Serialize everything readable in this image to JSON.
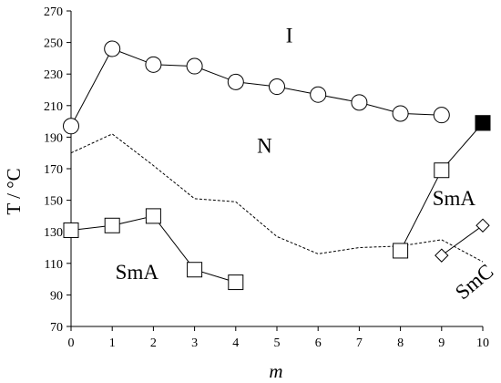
{
  "chart_data": {
    "type": "scatter",
    "xlabel": "m",
    "ylabel": "T / °C",
    "xlim": [
      0,
      10
    ],
    "ylim": [
      70,
      270
    ],
    "x_ticks": [
      0,
      1,
      2,
      3,
      4,
      5,
      6,
      7,
      8,
      9,
      10
    ],
    "y_ticks": [
      70,
      90,
      110,
      130,
      150,
      170,
      190,
      210,
      230,
      250,
      270
    ],
    "grid": false,
    "series": [
      {
        "marker": "circle-open",
        "line": "solid",
        "points": [
          [
            0,
            197
          ],
          [
            1,
            246
          ],
          [
            2,
            236
          ],
          [
            3,
            235
          ],
          [
            4,
            225
          ],
          [
            5,
            222
          ],
          [
            6,
            217
          ],
          [
            7,
            212
          ],
          [
            8,
            205
          ],
          [
            9,
            204
          ]
        ]
      },
      {
        "marker": "square-filled",
        "line": "solid",
        "points": [
          [
            10,
            199
          ]
        ]
      },
      {
        "marker": "square-open",
        "line": "solid",
        "points": [
          [
            0,
            131
          ],
          [
            1,
            134
          ],
          [
            2,
            140
          ],
          [
            3,
            106
          ],
          [
            4,
            98
          ]
        ]
      },
      {
        "marker": "square-open",
        "line": "solid",
        "points": [
          [
            8,
            118
          ],
          [
            9,
            169
          ],
          [
            10,
            199
          ]
        ]
      },
      {
        "marker": "diamond-open",
        "line": "solid",
        "points": [
          [
            9,
            115
          ],
          [
            10,
            134
          ]
        ]
      },
      {
        "marker": "none",
        "line": "dashed",
        "points": [
          [
            0,
            180
          ],
          [
            1,
            192
          ],
          [
            2,
            172
          ],
          [
            3,
            151
          ],
          [
            4,
            149
          ],
          [
            5,
            127
          ],
          [
            6,
            116
          ],
          [
            7,
            120
          ],
          [
            8,
            121
          ],
          [
            9,
            125
          ],
          [
            10,
            111
          ]
        ]
      }
    ],
    "annotations": [
      {
        "text": "I",
        "x": 5.3,
        "y": 250
      },
      {
        "text": "N",
        "x": 4.7,
        "y": 180
      },
      {
        "text": "SmA",
        "x": 9.3,
        "y": 147
      },
      {
        "text": "SmA",
        "x": 1.6,
        "y": 100
      },
      {
        "text": "SmC",
        "x": 9.9,
        "y": 95
      }
    ]
  }
}
